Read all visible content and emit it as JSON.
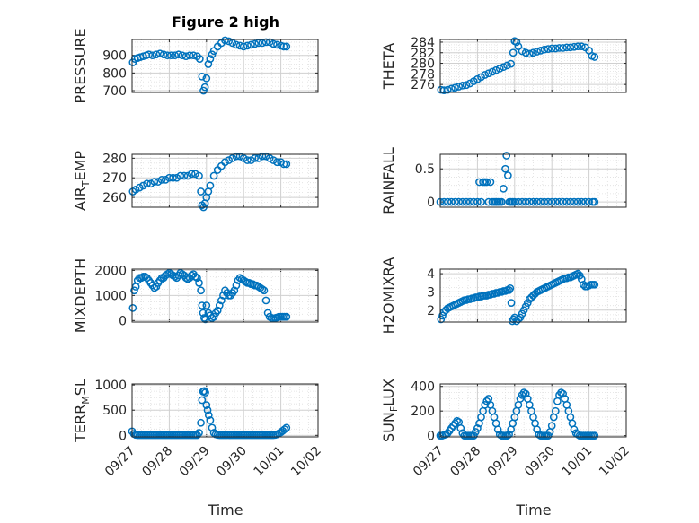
{
  "title": "Figure 2 high",
  "x_label": "Time",
  "x_ticks": [
    "09/27",
    "09/28",
    "09/29",
    "09/30",
    "10/01",
    "10/02"
  ],
  "colors": {
    "marker": "#0072BD",
    "axis": "#262626",
    "grid": "#dfdfdf"
  },
  "chart_data": [
    {
      "type": "scatter",
      "ylabel": "PRESSURE",
      "ylabel_parts": {
        "main": "PRESSURE"
      },
      "ylim": [
        690,
        990
      ],
      "yticks": [
        700,
        800,
        900
      ],
      "xlim": [
        0,
        5
      ],
      "grid": true,
      "x": [
        0.02,
        0.08,
        0.15,
        0.22,
        0.3,
        0.38,
        0.45,
        0.55,
        0.65,
        0.75,
        0.85,
        0.95,
        1.05,
        1.15,
        1.25,
        1.35,
        1.45,
        1.55,
        1.65,
        1.75,
        1.82,
        1.88,
        1.92,
        1.96,
        2.0,
        2.05,
        2.1,
        2.15,
        2.2,
        2.3,
        2.4,
        2.5,
        2.6,
        2.7,
        2.8,
        2.9,
        3.0,
        3.1,
        3.2,
        3.3,
        3.4,
        3.5,
        3.6,
        3.7,
        3.8,
        3.9,
        4.0,
        4.08,
        4.15
      ],
      "y": [
        860,
        880,
        885,
        890,
        895,
        900,
        905,
        900,
        905,
        910,
        905,
        900,
        900,
        900,
        905,
        900,
        895,
        900,
        900,
        895,
        880,
        780,
        700,
        720,
        770,
        850,
        880,
        905,
        925,
        950,
        970,
        985,
        980,
        970,
        960,
        955,
        950,
        955,
        960,
        965,
        970,
        970,
        975,
        975,
        965,
        960,
        955,
        950,
        950
      ]
    },
    {
      "type": "scatter",
      "ylabel": "THETA",
      "ylabel_parts": {
        "main": "THETA"
      },
      "ylim": [
        274.5,
        284.5
      ],
      "yticks": [
        276,
        278,
        280,
        282,
        284
      ],
      "ytick_labels": [
        "276",
        "278",
        "280",
        "282",
        "284"
      ],
      "xlim": [
        0,
        5
      ],
      "grid": true,
      "x": [
        0.02,
        0.1,
        0.2,
        0.3,
        0.4,
        0.5,
        0.6,
        0.7,
        0.8,
        0.9,
        1.0,
        1.1,
        1.2,
        1.3,
        1.4,
        1.5,
        1.6,
        1.7,
        1.8,
        1.9,
        1.96,
        2.0,
        2.05,
        2.1,
        2.2,
        2.3,
        2.4,
        2.5,
        2.6,
        2.7,
        2.8,
        2.9,
        3.0,
        3.1,
        3.2,
        3.3,
        3.4,
        3.5,
        3.6,
        3.7,
        3.8,
        3.9,
        4.0,
        4.08,
        4.15
      ],
      "y": [
        275.0,
        274.9,
        275.0,
        275.2,
        275.4,
        275.6,
        275.8,
        275.9,
        276.2,
        276.6,
        277.0,
        277.4,
        277.8,
        278.1,
        278.4,
        278.7,
        279.0,
        279.3,
        279.6,
        279.9,
        282.0,
        284.2,
        284.0,
        283.2,
        282.3,
        282.0,
        281.8,
        282.0,
        282.2,
        282.4,
        282.6,
        282.7,
        282.8,
        282.8,
        282.9,
        282.9,
        283.0,
        283.0,
        283.1,
        283.2,
        283.2,
        283.0,
        282.4,
        281.4,
        281.2
      ]
    },
    {
      "type": "scatter",
      "ylabel": "AIR_TEMP",
      "ylabel_parts": {
        "main": "AIR",
        "sub": "T",
        "after": "EMP"
      },
      "ylim": [
        255,
        282
      ],
      "yticks": [
        260,
        270,
        280
      ],
      "xlim": [
        0,
        5
      ],
      "grid": true,
      "x": [
        0.02,
        0.1,
        0.2,
        0.3,
        0.4,
        0.5,
        0.6,
        0.7,
        0.8,
        0.9,
        1.0,
        1.1,
        1.2,
        1.3,
        1.4,
        1.5,
        1.6,
        1.7,
        1.8,
        1.85,
        1.88,
        1.92,
        1.96,
        2.0,
        2.05,
        2.1,
        2.2,
        2.3,
        2.4,
        2.5,
        2.6,
        2.7,
        2.8,
        2.9,
        3.0,
        3.1,
        3.2,
        3.3,
        3.4,
        3.5,
        3.6,
        3.7,
        3.8,
        3.9,
        4.0,
        4.08,
        4.15
      ],
      "y": [
        263,
        264,
        265,
        266,
        267,
        267,
        268,
        268,
        269,
        269,
        270,
        270,
        270,
        271,
        271,
        271,
        272,
        272,
        271,
        263,
        256,
        255,
        257,
        260,
        263,
        266,
        271,
        274,
        276,
        278,
        279,
        280,
        281,
        281,
        280,
        279,
        279,
        280,
        280,
        281,
        281,
        280,
        279,
        278,
        278,
        277,
        277
      ]
    },
    {
      "type": "scatter",
      "ylabel": "RAINFALL",
      "ylabel_parts": {
        "main": "RAINFALL"
      },
      "ylim": [
        -0.08,
        0.72
      ],
      "yticks": [
        0,
        0.5
      ],
      "ytick_labels": [
        "0",
        "0.5"
      ],
      "xlim": [
        0,
        5
      ],
      "grid": true,
      "x": [
        0.0,
        0.1,
        0.2,
        0.3,
        0.4,
        0.5,
        0.6,
        0.7,
        0.8,
        0.9,
        1.0,
        1.05,
        1.1,
        1.15,
        1.2,
        1.25,
        1.3,
        1.35,
        1.4,
        1.45,
        1.5,
        1.55,
        1.6,
        1.65,
        1.7,
        1.75,
        1.78,
        1.82,
        1.86,
        1.9,
        1.95,
        2.0,
        2.1,
        2.2,
        2.3,
        2.4,
        2.5,
        2.6,
        2.7,
        2.8,
        2.9,
        3.0,
        3.1,
        3.2,
        3.3,
        3.4,
        3.5,
        3.6,
        3.7,
        3.8,
        3.9,
        4.0,
        4.1,
        4.15
      ],
      "y": [
        0,
        0,
        0,
        0,
        0,
        0,
        0,
        0,
        0,
        0,
        0,
        0.3,
        0,
        0.3,
        0.3,
        0.3,
        0,
        0.3,
        0,
        0,
        0,
        0,
        0,
        0,
        0.2,
        0.5,
        0.7,
        0.4,
        0,
        0,
        0,
        0,
        0,
        0,
        0,
        0,
        0,
        0,
        0,
        0,
        0,
        0,
        0,
        0,
        0,
        0,
        0,
        0,
        0,
        0,
        0,
        0,
        0,
        0
      ]
    },
    {
      "type": "scatter",
      "ylabel": "MIXDEPTH",
      "ylabel_parts": {
        "main": "MIXDEPTH"
      },
      "ylim": [
        -60,
        2050
      ],
      "yticks": [
        0,
        1000,
        2000
      ],
      "xlim": [
        0,
        5
      ],
      "grid": true,
      "x": [
        0.02,
        0.06,
        0.1,
        0.15,
        0.2,
        0.25,
        0.3,
        0.35,
        0.4,
        0.45,
        0.5,
        0.55,
        0.6,
        0.65,
        0.7,
        0.75,
        0.8,
        0.85,
        0.9,
        0.95,
        1.0,
        1.05,
        1.1,
        1.15,
        1.2,
        1.25,
        1.3,
        1.35,
        1.4,
        1.45,
        1.5,
        1.55,
        1.6,
        1.65,
        1.7,
        1.75,
        1.8,
        1.85,
        1.88,
        1.91,
        1.94,
        1.97,
        2.0,
        2.05,
        2.1,
        2.15,
        2.2,
        2.25,
        2.3,
        2.35,
        2.4,
        2.45,
        2.5,
        2.55,
        2.6,
        2.65,
        2.7,
        2.75,
        2.8,
        2.85,
        2.9,
        2.95,
        3.0,
        3.05,
        3.1,
        3.15,
        3.2,
        3.25,
        3.3,
        3.35,
        3.4,
        3.45,
        3.5,
        3.55,
        3.6,
        3.65,
        3.7,
        3.75,
        3.8,
        3.85,
        3.9,
        3.95,
        4.0,
        4.05,
        4.1,
        4.15
      ],
      "y": [
        500,
        1200,
        1350,
        1600,
        1700,
        1700,
        1750,
        1750,
        1700,
        1600,
        1500,
        1400,
        1300,
        1350,
        1500,
        1600,
        1700,
        1700,
        1800,
        1850,
        1900,
        1850,
        1800,
        1750,
        1700,
        1800,
        1900,
        1850,
        1800,
        1700,
        1650,
        1700,
        1800,
        1850,
        1750,
        1700,
        1500,
        1200,
        600,
        300,
        100,
        50,
        600,
        300,
        200,
        100,
        150,
        300,
        400,
        600,
        800,
        1000,
        1200,
        1100,
        1000,
        1000,
        1100,
        1200,
        1400,
        1600,
        1700,
        1650,
        1600,
        1550,
        1500,
        1500,
        1450,
        1450,
        1400,
        1400,
        1350,
        1300,
        1250,
        1200,
        800,
        300,
        150,
        100,
        80,
        100,
        120,
        150,
        150,
        150,
        150,
        150
      ]
    },
    {
      "type": "scatter",
      "ylabel": "H2OMIXRA",
      "ylabel_parts": {
        "main": "H2OMIXRA"
      },
      "ylim": [
        1.35,
        4.25
      ],
      "yticks": [
        2,
        3,
        4
      ],
      "xlim": [
        0,
        5
      ],
      "grid": true,
      "x": [
        0.02,
        0.06,
        0.1,
        0.15,
        0.2,
        0.25,
        0.3,
        0.35,
        0.4,
        0.45,
        0.5,
        0.55,
        0.6,
        0.65,
        0.7,
        0.75,
        0.8,
        0.85,
        0.9,
        0.95,
        1.0,
        1.05,
        1.1,
        1.15,
        1.2,
        1.25,
        1.3,
        1.35,
        1.4,
        1.45,
        1.5,
        1.55,
        1.6,
        1.65,
        1.7,
        1.75,
        1.8,
        1.85,
        1.88,
        1.91,
        1.94,
        1.97,
        2.0,
        2.05,
        2.1,
        2.15,
        2.2,
        2.25,
        2.3,
        2.35,
        2.4,
        2.45,
        2.5,
        2.55,
        2.6,
        2.65,
        2.7,
        2.75,
        2.8,
        2.85,
        2.9,
        2.95,
        3.0,
        3.05,
        3.1,
        3.15,
        3.2,
        3.25,
        3.3,
        3.35,
        3.4,
        3.45,
        3.5,
        3.55,
        3.6,
        3.65,
        3.7,
        3.75,
        3.8,
        3.85,
        3.9,
        3.95,
        4.0,
        4.05,
        4.1,
        4.15
      ],
      "y": [
        1.5,
        1.7,
        1.9,
        2.0,
        2.1,
        2.15,
        2.2,
        2.25,
        2.3,
        2.35,
        2.4,
        2.45,
        2.5,
        2.55,
        2.55,
        2.6,
        2.6,
        2.65,
        2.65,
        2.7,
        2.7,
        2.75,
        2.75,
        2.8,
        2.8,
        2.8,
        2.85,
        2.85,
        2.9,
        2.9,
        2.95,
        2.95,
        3.0,
        3.0,
        3.05,
        3.05,
        3.1,
        3.1,
        3.2,
        2.4,
        1.4,
        1.5,
        1.6,
        1.4,
        1.5,
        1.6,
        1.8,
        2.0,
        2.2,
        2.4,
        2.6,
        2.7,
        2.8,
        2.9,
        3.0,
        3.05,
        3.1,
        3.15,
        3.2,
        3.25,
        3.3,
        3.35,
        3.4,
        3.45,
        3.5,
        3.55,
        3.6,
        3.65,
        3.7,
        3.75,
        3.75,
        3.8,
        3.8,
        3.85,
        3.9,
        3.95,
        4.0,
        3.9,
        3.7,
        3.4,
        3.3,
        3.3,
        3.35,
        3.4,
        3.4,
        3.4
      ]
    },
    {
      "type": "scatter",
      "ylabel": "TERR_MSL",
      "ylabel_parts": {
        "main": "TERR",
        "sub": "M",
        "after": "SL"
      },
      "ylim": [
        -30,
        1020
      ],
      "yticks": [
        0,
        500,
        1000
      ],
      "xlim": [
        0,
        5
      ],
      "grid": true,
      "x": [
        0.0,
        0.05,
        0.1,
        0.15,
        0.2,
        0.25,
        0.3,
        0.35,
        0.4,
        0.45,
        0.5,
        0.55,
        0.6,
        0.65,
        0.7,
        0.75,
        0.8,
        0.85,
        0.9,
        0.95,
        1.0,
        1.05,
        1.1,
        1.15,
        1.2,
        1.25,
        1.3,
        1.35,
        1.4,
        1.45,
        1.5,
        1.55,
        1.6,
        1.65,
        1.7,
        1.75,
        1.8,
        1.85,
        1.88,
        1.91,
        1.94,
        1.97,
        2.0,
        2.03,
        2.06,
        2.1,
        2.15,
        2.2,
        2.25,
        2.3,
        2.35,
        2.4,
        2.45,
        2.5,
        2.55,
        2.6,
        2.65,
        2.7,
        2.75,
        2.8,
        2.85,
        2.9,
        2.95,
        3.0,
        3.05,
        3.1,
        3.15,
        3.2,
        3.25,
        3.3,
        3.35,
        3.4,
        3.45,
        3.5,
        3.55,
        3.6,
        3.65,
        3.7,
        3.75,
        3.8,
        3.85,
        3.9,
        3.95,
        4.0,
        4.05,
        4.1,
        4.15
      ],
      "y": [
        80,
        30,
        10,
        5,
        5,
        5,
        5,
        5,
        5,
        5,
        5,
        5,
        5,
        5,
        5,
        5,
        5,
        5,
        5,
        5,
        5,
        5,
        5,
        5,
        5,
        5,
        5,
        5,
        5,
        5,
        5,
        5,
        5,
        5,
        5,
        5,
        50,
        250,
        700,
        870,
        880,
        850,
        600,
        500,
        400,
        300,
        150,
        50,
        20,
        10,
        5,
        5,
        5,
        5,
        5,
        5,
        5,
        5,
        5,
        5,
        5,
        5,
        5,
        5,
        5,
        5,
        5,
        5,
        5,
        5,
        5,
        5,
        5,
        5,
        5,
        5,
        5,
        5,
        5,
        5,
        10,
        20,
        40,
        60,
        90,
        120,
        150
      ]
    },
    {
      "type": "scatter",
      "ylabel": "SUN_FLUX",
      "ylabel_parts": {
        "main": "SUN",
        "sub": "F",
        "after": "LUX"
      },
      "ylim": [
        -10,
        420
      ],
      "yticks": [
        0,
        200,
        400
      ],
      "xlim": [
        0,
        5
      ],
      "grid": true,
      "x": [
        0.0,
        0.05,
        0.1,
        0.15,
        0.2,
        0.25,
        0.3,
        0.35,
        0.4,
        0.45,
        0.5,
        0.55,
        0.6,
        0.65,
        0.7,
        0.75,
        0.8,
        0.85,
        0.9,
        0.95,
        1.0,
        1.05,
        1.1,
        1.15,
        1.2,
        1.25,
        1.3,
        1.35,
        1.4,
        1.45,
        1.5,
        1.55,
        1.6,
        1.65,
        1.7,
        1.75,
        1.8,
        1.85,
        1.9,
        1.95,
        2.0,
        2.05,
        2.1,
        2.15,
        2.2,
        2.25,
        2.3,
        2.35,
        2.4,
        2.45,
        2.5,
        2.55,
        2.6,
        2.65,
        2.7,
        2.75,
        2.8,
        2.85,
        2.9,
        2.95,
        3.0,
        3.05,
        3.1,
        3.15,
        3.2,
        3.25,
        3.3,
        3.35,
        3.4,
        3.45,
        3.5,
        3.55,
        3.6,
        3.65,
        3.7,
        3.75,
        3.8,
        3.85,
        3.9,
        3.95,
        4.0,
        4.05,
        4.1,
        4.15
      ],
      "y": [
        0,
        0,
        5,
        10,
        20,
        40,
        60,
        80,
        100,
        120,
        110,
        60,
        20,
        0,
        0,
        0,
        0,
        0,
        0,
        30,
        60,
        100,
        150,
        200,
        250,
        280,
        300,
        250,
        200,
        150,
        100,
        50,
        10,
        0,
        0,
        0,
        0,
        10,
        50,
        100,
        150,
        200,
        250,
        300,
        330,
        350,
        340,
        300,
        250,
        200,
        150,
        100,
        50,
        10,
        0,
        0,
        0,
        0,
        0,
        30,
        80,
        150,
        200,
        280,
        330,
        350,
        340,
        300,
        250,
        200,
        150,
        100,
        50,
        20,
        10,
        0,
        0,
        0,
        0,
        0,
        0,
        0,
        0,
        0
      ]
    }
  ]
}
